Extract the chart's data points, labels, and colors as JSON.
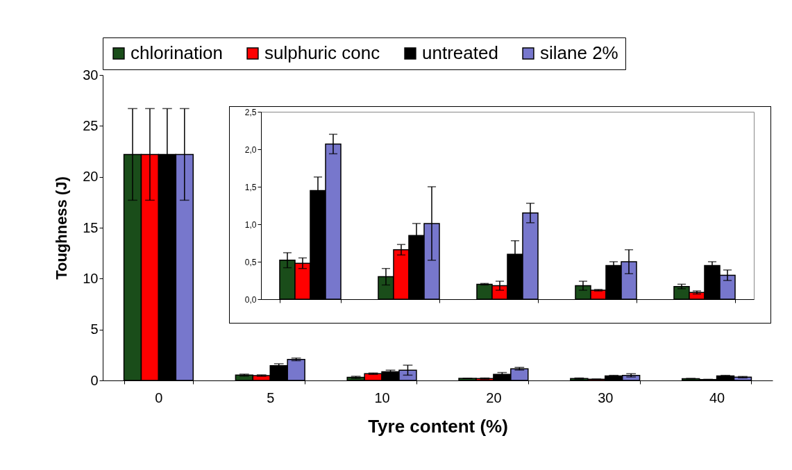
{
  "chart_data": [
    {
      "type": "bar",
      "xlabel": "Tyre content (%)",
      "ylabel": "Toughness (J)",
      "categories": [
        "0",
        "5",
        "10",
        "20",
        "30",
        "40"
      ],
      "ylim": [
        0,
        30
      ],
      "yticks": [
        0,
        5,
        10,
        15,
        20,
        25,
        30
      ],
      "legend": "top",
      "grid": false,
      "series": [
        {
          "name": "chlorination",
          "color": "#1a4d1a",
          "values": [
            22.2,
            0.52,
            0.3,
            0.2,
            0.18,
            0.17
          ],
          "errors": [
            4.5,
            0.1,
            0.11,
            0.01,
            0.06,
            0.03
          ]
        },
        {
          "name": "sulphuric conc",
          "color": "#ff0000",
          "values": [
            22.2,
            0.48,
            0.66,
            0.18,
            0.12,
            0.09
          ],
          "errors": [
            4.5,
            0.07,
            0.07,
            0.06,
            0.01,
            0.02
          ]
        },
        {
          "name": "untreated",
          "color": "#000000",
          "values": [
            22.2,
            1.45,
            0.85,
            0.6,
            0.45,
            0.45
          ],
          "errors": [
            4.5,
            0.18,
            0.16,
            0.18,
            0.05,
            0.05
          ]
        },
        {
          "name": "silane 2%",
          "color": "#7777cc",
          "values": [
            22.2,
            2.07,
            1.01,
            1.15,
            0.5,
            0.32
          ],
          "errors": [
            4.5,
            0.13,
            0.49,
            0.13,
            0.16,
            0.07
          ]
        }
      ]
    },
    {
      "type": "bar",
      "categories": [
        null,
        null,
        null,
        null,
        null
      ],
      "ylim": [
        0,
        2.5
      ],
      "yticks": [
        {
          "value": 0,
          "label": "0,0"
        },
        {
          "value": 0.5,
          "label": "0,5"
        },
        {
          "value": 1,
          "label": "1,0"
        },
        {
          "value": 1.5,
          "label": "1,5"
        },
        {
          "value": 2,
          "label": "2,0"
        },
        {
          "value": 2.5,
          "label": "2,5"
        }
      ],
      "tick_labels": "y",
      "legend": false,
      "grid": false,
      "series": [
        {
          "color": "#1a4d1a",
          "values": [
            0.52,
            0.3,
            0.2,
            0.18,
            0.17
          ],
          "errors": [
            0.1,
            0.11,
            0.01,
            0.06,
            0.03
          ]
        },
        {
          "color": "#ff0000",
          "values": [
            0.48,
            0.66,
            0.18,
            0.12,
            0.09
          ],
          "errors": [
            0.07,
            0.07,
            0.06,
            0.01,
            0.02
          ]
        },
        {
          "color": "#000000",
          "values": [
            1.45,
            0.85,
            0.6,
            0.45,
            0.45
          ],
          "errors": [
            0.18,
            0.16,
            0.18,
            0.05,
            0.05
          ]
        },
        {
          "color": "#7777cc",
          "values": [
            2.07,
            1.01,
            1.15,
            0.5,
            0.32
          ],
          "errors": [
            0.13,
            0.49,
            0.13,
            0.16,
            0.07
          ]
        }
      ]
    }
  ]
}
